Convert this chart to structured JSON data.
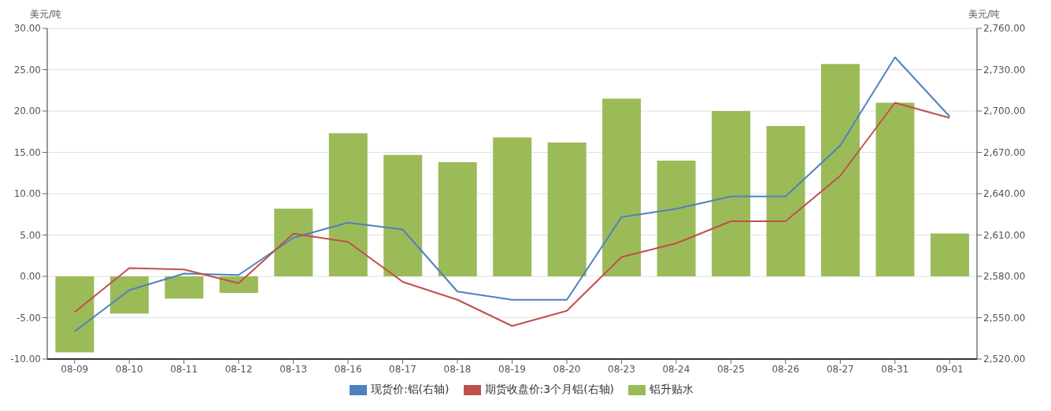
{
  "chart_data": {
    "type": "bar",
    "ylabel": "美元/吨",
    "y2label": "美元/吨",
    "categories": [
      "08-09",
      "08-10",
      "08-11",
      "08-12",
      "08-13",
      "08-16",
      "08-17",
      "08-18",
      "08-19",
      "08-20",
      "08-23",
      "08-24",
      "08-25",
      "08-26",
      "08-27",
      "08-31",
      "09-01"
    ],
    "series": [
      {
        "name": "现货价:铝(右轴)",
        "type": "line",
        "axis": "y2",
        "color": "#4f81bd",
        "values": [
          2540,
          2570,
          2582,
          2581,
          2608,
          2619,
          2614,
          2569,
          2563,
          2563,
          2623,
          2629,
          2638,
          2638,
          2675,
          2739,
          2696
        ]
      },
      {
        "name": "期货收盘价:3个月铝(右轴)",
        "type": "line",
        "axis": "y2",
        "color": "#c0504d",
        "values": [
          2554,
          2586,
          2585,
          2575,
          2611,
          2605,
          2576,
          2563,
          2544,
          2555,
          2594,
          2604,
          2620,
          2620,
          2653,
          2706,
          2695
        ]
      },
      {
        "name": "铝升贴水",
        "color": "#9bbb59",
        "values": [
          -9.2,
          -4.5,
          -2.7,
          -2.0,
          8.2,
          17.3,
          14.7,
          13.8,
          16.8,
          16.2,
          21.5,
          14.0,
          20.0,
          18.2,
          25.7,
          21.0,
          5.2
        ]
      }
    ],
    "ylim": [
      -10,
      30
    ],
    "yticks": [
      {
        "value": -10,
        "label": "-10.00"
      },
      {
        "value": -5,
        "label": "-5.00"
      },
      {
        "value": 0,
        "label": "0.00"
      },
      {
        "value": 5,
        "label": "5.00"
      },
      {
        "value": 10,
        "label": "10.00"
      },
      {
        "value": 15,
        "label": "15.00"
      },
      {
        "value": 20,
        "label": "20.00"
      },
      {
        "value": 25,
        "label": "25.00"
      },
      {
        "value": 30,
        "label": "30.00"
      }
    ],
    "y2lim": [
      2520,
      2760
    ],
    "y2ticks": [
      {
        "value": 2520,
        "label": "2,520.00"
      },
      {
        "value": 2550,
        "label": "2,550.00"
      },
      {
        "value": 2580,
        "label": "2,580.00"
      },
      {
        "value": 2610,
        "label": "2,610.00"
      },
      {
        "value": 2640,
        "label": "2,640.00"
      },
      {
        "value": 2670,
        "label": "2,670.00"
      },
      {
        "value": 2700,
        "label": "2,700.00"
      },
      {
        "value": 2730,
        "label": "2,730.00"
      },
      {
        "value": 2760,
        "label": "2,760.00"
      }
    ],
    "grid": "y",
    "legend": "bottom",
    "marker": "none"
  }
}
